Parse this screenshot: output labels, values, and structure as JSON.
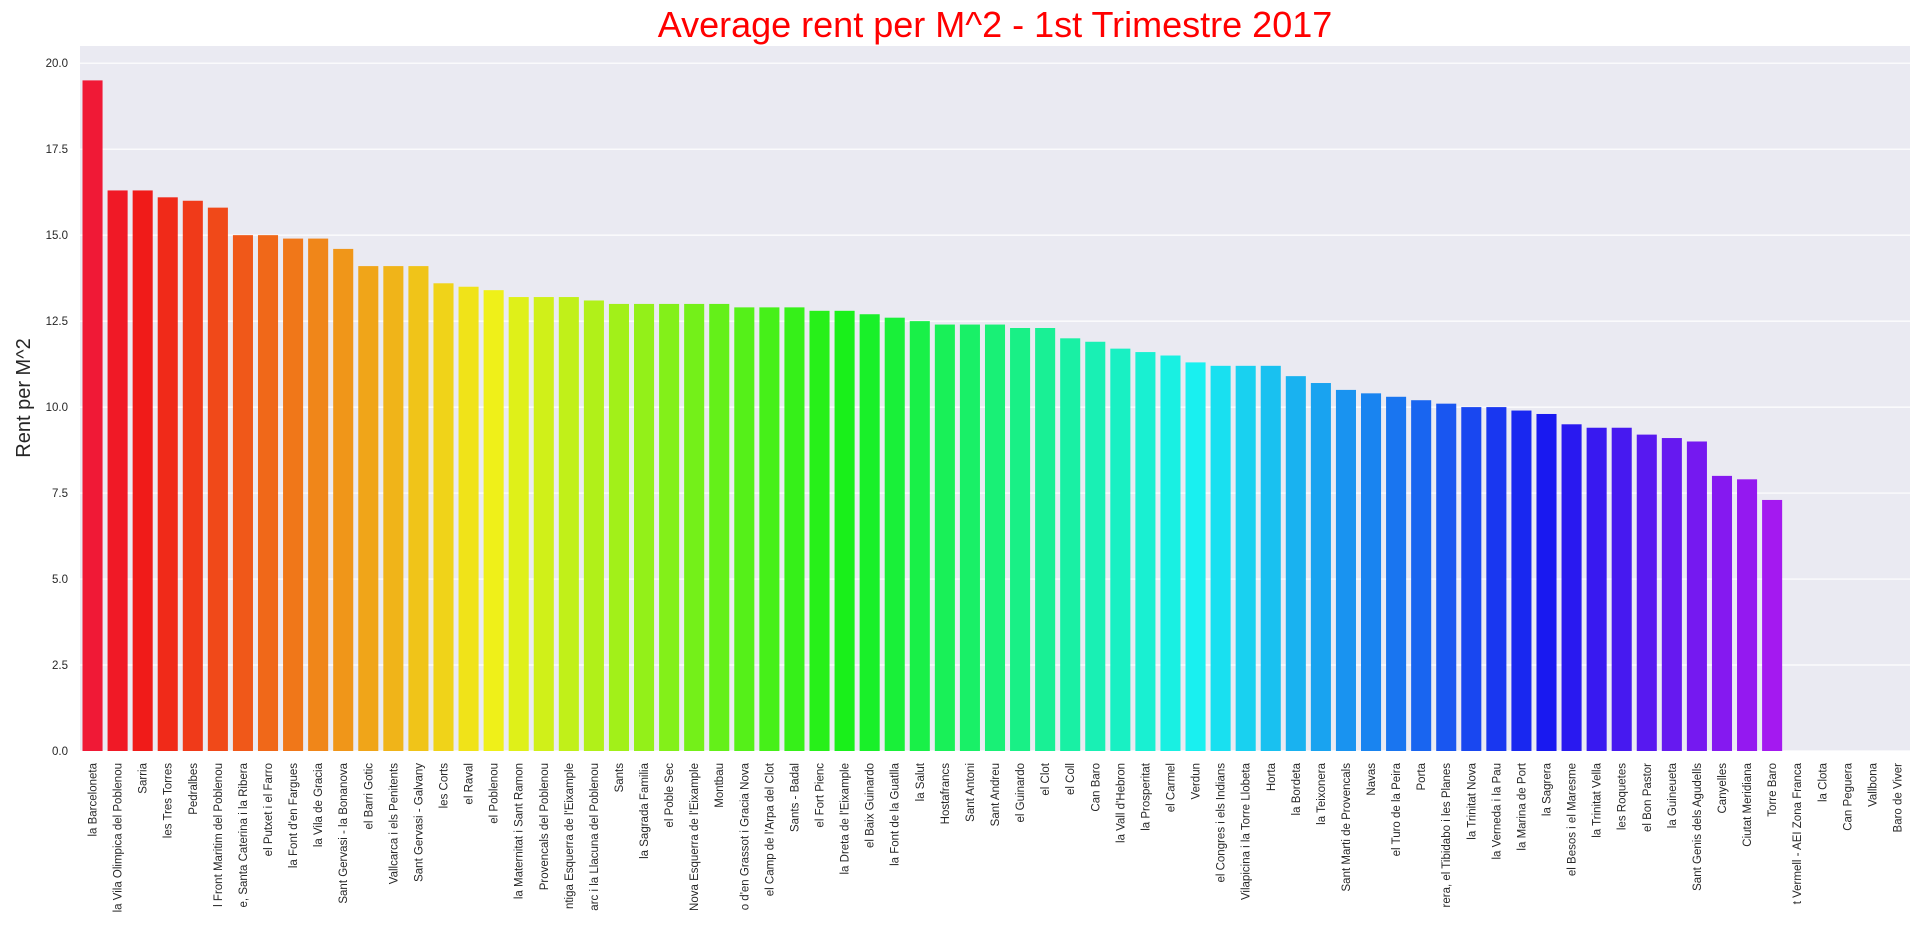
{
  "chart_data": {
    "type": "bar",
    "title": "Average rent per M^2 - 1st Trimestre 2017",
    "title_color": "#ff0000",
    "xlabel": "",
    "ylabel": "Rent per M^2",
    "ylim": [
      0,
      20.5
    ],
    "yticks": [
      "0.0",
      "2.5",
      "5.0",
      "7.5",
      "10.0",
      "12.5",
      "15.0",
      "17.5",
      "20.0"
    ],
    "grid": true,
    "background": "#eaeaf2",
    "palette": "rainbow (red to magenta)",
    "categories": [
      "la Barceloneta",
      "la Vila Olimpica del Poblenou",
      "Sarria",
      "les Tres Torres",
      "Pedralbes",
      "l Front Maritim del Poblenou",
      "e, Santa Caterina i la Ribera",
      "el Putxet i el Farro",
      "la Font d'en Fargues",
      "la Vila de Gracia",
      "Sant Gervasi - la Bonanova",
      "el Barri Gotic",
      "Vallcarca i els Penitents",
      "Sant Gervasi - Galvany",
      "les Corts",
      "el Raval",
      "el Poblenou",
      "la Maternitat i Sant Ramon",
      "Provencals del Poblenou",
      "ntiga Esquerra de l'Eixample",
      "arc i la Llacuna del Poblenou",
      "Sants",
      "la Sagrada Familia",
      "el Poble Sec",
      "Nova Esquerra de l'Eixample",
      "Montbau",
      "o d'en Grassot i Gracia Nova",
      "el Camp de l'Arpa del Clot",
      "Sants - Badal",
      "el Fort Pienc",
      "la Dreta de l'Eixample",
      "el Baix Guinardo",
      "la Font de la Guatlla",
      "la Salut",
      "Hostafrancs",
      "Sant Antoni",
      "Sant Andreu",
      "el Guinardo",
      "el Clot",
      "el Coll",
      "Can Baro",
      "la Vall d'Hebron",
      "la Prosperitat",
      "el Carmel",
      "Verdun",
      "el Congres i els Indians",
      "Vilapicina i la Torre Llobeta",
      "Horta",
      "la Bordeta",
      "la Teixonera",
      "Sant Marti de Provencals",
      "Navas",
      "el Turo de la Peira",
      "Porta",
      "rera, el Tibidabo i les Planes",
      "la Trinitat Nova",
      "la Verneda i la Pau",
      "la Marina de Port",
      "la Sagrera",
      "el Besos i el Maresme",
      "la Trinitat Vella",
      "les Roquetes",
      "el Bon Pastor",
      "la Guineueta",
      "Sant Genis dels Agudells",
      "Canyelles",
      "Ciutat Meridiana",
      "Torre Baro",
      "t Vermell - AEI Zona Franca",
      "la Clota",
      "Can Peguera",
      "Vallbona",
      "Baro de Viver"
    ],
    "values": [
      19.5,
      16.3,
      16.3,
      16.1,
      16.0,
      15.8,
      15.0,
      15.0,
      14.9,
      14.9,
      14.6,
      14.1,
      14.1,
      14.1,
      13.6,
      13.5,
      13.4,
      13.2,
      13.2,
      13.2,
      13.1,
      13.0,
      13.0,
      13.0,
      13.0,
      13.0,
      12.9,
      12.9,
      12.9,
      12.8,
      12.8,
      12.7,
      12.6,
      12.5,
      12.4,
      12.4,
      12.4,
      12.3,
      12.3,
      12.0,
      11.9,
      11.7,
      11.6,
      11.5,
      11.3,
      11.2,
      11.2,
      11.2,
      10.9,
      10.7,
      10.5,
      10.4,
      10.3,
      10.2,
      10.1,
      10.0,
      10.0,
      9.9,
      9.8,
      9.5,
      9.4,
      9.4,
      9.2,
      9.1,
      9.0,
      8.0,
      7.9,
      7.3,
      0,
      0,
      0,
      0,
      0
    ]
  }
}
